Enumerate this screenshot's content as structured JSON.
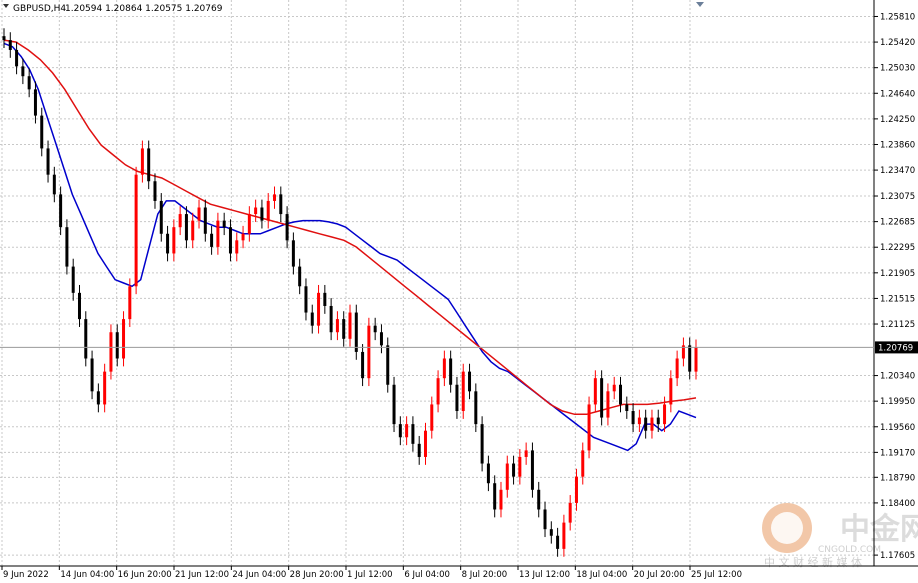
{
  "header": {
    "symbol_label": "GBPUSD,H4",
    "ohlc_label": "1.20594 1.20864 1.20575 1.20769"
  },
  "colors": {
    "background": "#ffffff",
    "grid": "#c8c8c8",
    "bull_candle": "#ff0000",
    "bear_candle": "#000000",
    "ma_fast": "#0000cc",
    "ma_slow": "#e01010",
    "price_tag_bg": "#000000",
    "price_tag_fg": "#ffffff",
    "watermark": "#e6e6e6"
  },
  "watermark": {
    "brand_cn": "中金网",
    "brand_en": "CNGOLD.COM",
    "tagline_cn": "中 文 财 经 新 媒 体"
  },
  "chart_data": {
    "type": "candlestick",
    "title": "GBPUSD,H4",
    "ylim": [
      1.175,
      1.26
    ],
    "y_ticks": [
      "1.25810",
      "1.25420",
      "1.25030",
      "1.24640",
      "1.24250",
      "1.23860",
      "1.23470",
      "1.23075",
      "1.22685",
      "1.22295",
      "1.21905",
      "1.21515",
      "1.21125",
      "1.20340",
      "1.19950",
      "1.19560",
      "1.19170",
      "1.18790",
      "1.18400",
      "1.17605"
    ],
    "current_price": "1.20769",
    "x_ticks": [
      "9 Jun 2022",
      "14 Jun 04:00",
      "16 Jun 20:00",
      "21 Jun 12:00",
      "24 Jun 04:00",
      "28 Jun 20:00",
      "1 Jul 12:00",
      "6 Jul 04:00",
      "8 Jul 20:00",
      "13 Jul 12:00",
      "18 Jul 04:00",
      "20 Jul 20:00",
      "25 Jul 12:00"
    ],
    "grid": true,
    "candles_close": [
      1.2545,
      1.253,
      1.2505,
      1.249,
      1.247,
      1.243,
      1.238,
      1.234,
      1.231,
      1.226,
      1.22,
      1.216,
      1.212,
      1.206,
      1.201,
      1.199,
      1.204,
      1.21,
      1.206,
      1.212,
      1.217,
      1.234,
      1.238,
      1.233,
      1.23,
      1.225,
      1.222,
      1.226,
      1.228,
      1.224,
      1.227,
      1.229,
      1.225,
      1.223,
      1.227,
      1.226,
      1.222,
      1.224,
      1.225,
      1.228,
      1.229,
      1.227,
      1.23,
      1.231,
      1.228,
      1.224,
      1.22,
      1.217,
      1.213,
      1.211,
      1.216,
      1.214,
      1.21,
      1.212,
      1.209,
      1.213,
      1.207,
      1.203,
      1.211,
      1.21,
      1.208,
      1.202,
      1.196,
      1.194,
      1.196,
      1.193,
      1.191,
      1.195,
      1.199,
      1.203,
      1.206,
      1.202,
      1.198,
      1.204,
      1.201,
      1.196,
      1.19,
      1.187,
      1.183,
      1.186,
      1.19,
      1.188,
      1.191,
      1.192,
      1.186,
      1.183,
      1.18,
      1.179,
      1.177,
      1.181,
      1.184,
      1.188,
      1.192,
      1.199,
      1.203,
      1.197,
      1.201,
      1.202,
      1.199,
      1.198,
      1.196,
      1.197,
      1.195,
      1.197,
      1.196,
      1.199,
      1.203,
      1.206,
      1.208,
      1.204,
      1.2077
    ],
    "series": [
      {
        "name": "",
        "type": "moving-average",
        "color": "#0000cc",
        "values": [
          1.254,
          1.2535,
          1.252,
          1.25,
          1.247,
          1.243,
          1.239,
          1.235,
          1.231,
          1.228,
          1.225,
          1.222,
          1.22,
          1.218,
          1.2175,
          1.217,
          1.218,
          1.223,
          1.228,
          1.23,
          1.23,
          1.229,
          1.228,
          1.227,
          1.2265,
          1.226,
          1.226,
          1.2255,
          1.225,
          1.225,
          1.225,
          1.2255,
          1.226,
          1.2265,
          1.2268,
          1.227,
          1.227,
          1.227,
          1.2268,
          1.2265,
          1.226,
          1.225,
          1.224,
          1.223,
          1.222,
          1.2215,
          1.221,
          1.22,
          1.219,
          1.218,
          1.217,
          1.216,
          1.215,
          1.213,
          1.211,
          1.209,
          1.207,
          1.2055,
          1.2045,
          1.204,
          1.203,
          1.202,
          1.201,
          1.2,
          1.199,
          1.198,
          1.197,
          1.196,
          1.195,
          1.194,
          1.1935,
          1.193,
          1.1925,
          1.192,
          1.193,
          1.196,
          1.196,
          1.195,
          1.196,
          1.198,
          1.1975,
          1.197
        ]
      },
      {
        "name": "",
        "type": "moving-average",
        "color": "#e01010",
        "values": [
          1.2545,
          1.2542,
          1.253,
          1.2515,
          1.2495,
          1.247,
          1.244,
          1.241,
          1.2385,
          1.237,
          1.2355,
          1.2345,
          1.234,
          1.2335,
          1.2325,
          1.2315,
          1.2305,
          1.2295,
          1.229,
          1.2285,
          1.228,
          1.2275,
          1.227,
          1.2265,
          1.226,
          1.2255,
          1.225,
          1.2245,
          1.224,
          1.223,
          1.2215,
          1.22,
          1.2185,
          1.217,
          1.2155,
          1.214,
          1.2125,
          1.211,
          1.2095,
          1.208,
          1.2065,
          1.205,
          1.2035,
          1.202,
          1.2005,
          1.199,
          1.198,
          1.1975,
          1.1975,
          1.198,
          1.1985,
          1.199,
          1.199,
          1.199,
          1.1992,
          1.1995,
          1.1997,
          1.2
        ]
      }
    ]
  }
}
